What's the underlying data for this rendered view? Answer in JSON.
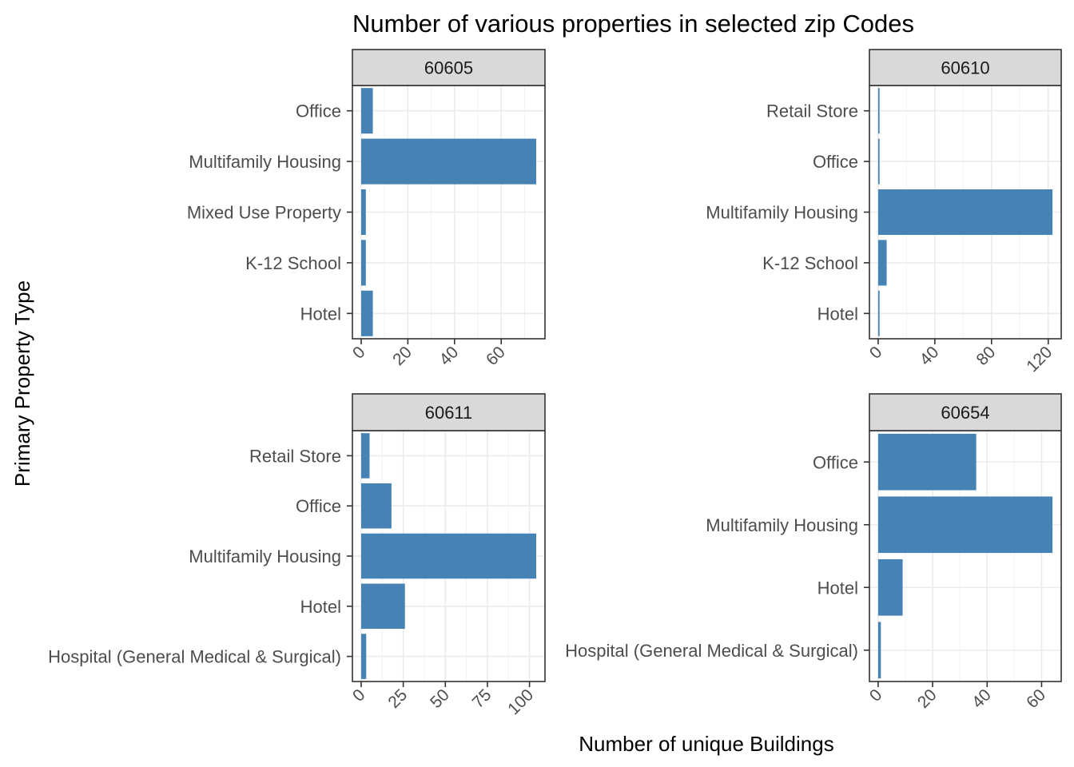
{
  "title": "Number of various properties in selected zip Codes",
  "chart_data": {
    "type": "bar",
    "orientation": "horizontal",
    "title": "Number of various properties in selected zip Codes",
    "xlabel": "Number of unique Buildings",
    "ylabel": "Primary Property Type",
    "bar_color": "#4682B4",
    "strip_color": "#D9D9D9",
    "grid": true,
    "legend": "none",
    "facets": [
      {
        "name": "60605",
        "categories": [
          "Hotel",
          "K-12 School",
          "Mixed Use Property",
          "Multifamily Housing",
          "Office"
        ],
        "values": [
          5,
          2,
          2,
          75,
          5
        ],
        "xlim": [
          -3.75,
          78.75
        ],
        "ticks": [
          0,
          20,
          40,
          60
        ]
      },
      {
        "name": "60610",
        "categories": [
          "Hotel",
          "K-12 School",
          "Multifamily Housing",
          "Office",
          "Retail Store"
        ],
        "values": [
          1,
          6,
          123,
          1,
          1
        ],
        "xlim": [
          -6.15,
          129.15
        ],
        "ticks": [
          0,
          40,
          80,
          120
        ]
      },
      {
        "name": "60611",
        "categories": [
          "Hospital (General Medical & Surgical)",
          "Hotel",
          "Multifamily Housing",
          "Office",
          "Retail Store"
        ],
        "values": [
          3,
          26,
          104,
          18,
          5
        ],
        "xlim": [
          -5.2,
          109.2
        ],
        "ticks": [
          0,
          25,
          50,
          75,
          100
        ]
      },
      {
        "name": "60654",
        "categories": [
          "Hospital (General Medical & Surgical)",
          "Hotel",
          "Multifamily Housing",
          "Office"
        ],
        "values": [
          1,
          9,
          64,
          36
        ],
        "xlim": [
          -3.2,
          67.2
        ],
        "ticks": [
          0,
          20,
          40,
          60
        ]
      }
    ]
  }
}
